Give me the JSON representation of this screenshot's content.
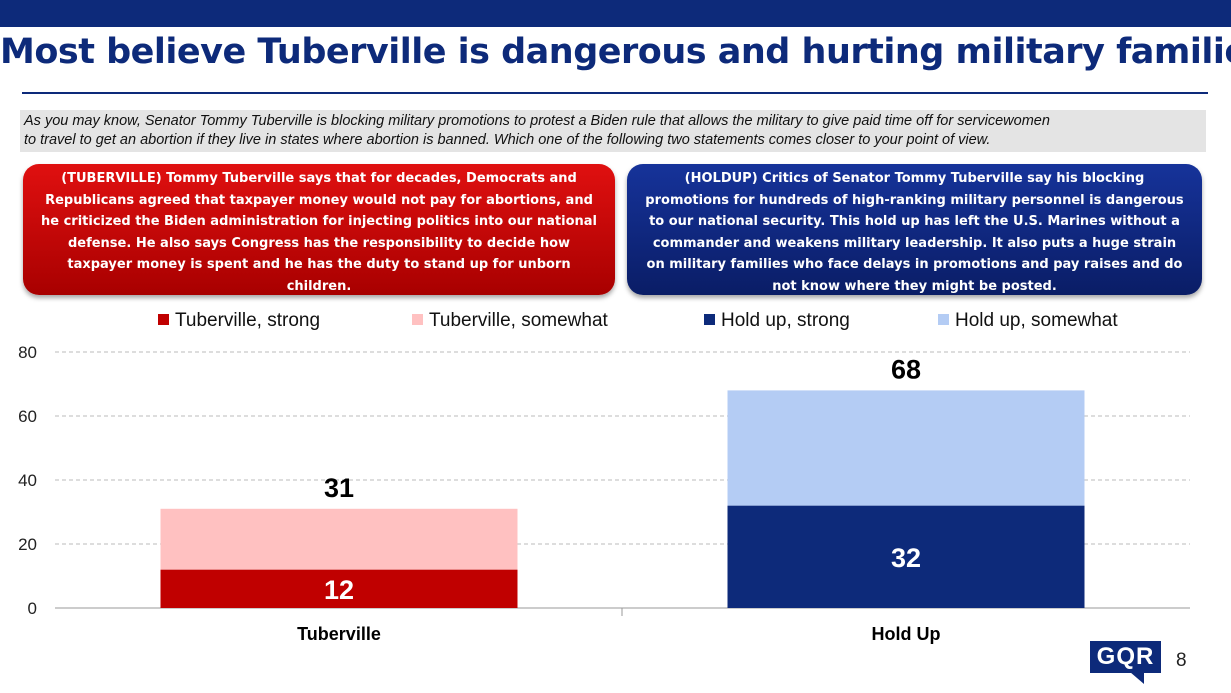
{
  "title": "Most believe Tuberville is dangerous and hurting military families",
  "question_lines": [
    "As you may know, Senator Tommy Tuberville is blocking military promotions to protest a Biden rule that allows the military to give paid time off for servicewomen",
    "to travel to get an abortion if they live in states where abortion is banned. Which one of the following two statements comes closer to your point of view."
  ],
  "statement_tuberville_lines": [
    "(TUBERVILLE) Tommy Tuberville says that for decades, Democrats and",
    "Republicans agreed that taxpayer money would not pay for abortions, and",
    "he criticized the Biden administration for injecting politics into our national",
    "defense. He also says Congress has the responsibility to decide how",
    "taxpayer money is spent and he has the duty to stand up for unborn",
    "children."
  ],
  "statement_holdup_lines": [
    "(HOLDUP) Critics of Senator Tommy Tuberville say his blocking",
    "promotions for hundreds of high-ranking military personnel is dangerous",
    "to our national security. This hold up has left the U.S. Marines without a",
    "commander and weakens military leadership. It also puts a huge strain",
    "on military families who face delays in promotions and pay raises and do",
    "not know where they might be posted."
  ],
  "page_number": "8",
  "logo_text": "GQR",
  "colors": {
    "brand_navy": "#0d2a7a",
    "tuberville_strong": "#c00000",
    "tuberville_somewhat": "#ffc1c1",
    "holdup_strong": "#0d2a7a",
    "holdup_somewhat": "#b4ccf4"
  },
  "chart_data": {
    "type": "bar",
    "stacked": true,
    "categories": [
      "Tuberville",
      "Hold Up"
    ],
    "series": [
      {
        "name": "Tuberville, strong",
        "values": [
          12,
          null
        ],
        "color": "#c00000"
      },
      {
        "name": "Tuberville, somewhat",
        "values": [
          19,
          null
        ],
        "color": "#ffc1c1"
      },
      {
        "name": "Hold up, strong",
        "values": [
          null,
          32
        ],
        "color": "#0d2a7a"
      },
      {
        "name": "Hold up, somewhat",
        "values": [
          null,
          36
        ],
        "color": "#b4ccf4"
      }
    ],
    "strong_labels": [
      "12",
      "32"
    ],
    "total_labels": [
      "31",
      "68"
    ],
    "ylim": [
      0,
      80
    ],
    "yticks": [
      "0",
      "20",
      "40",
      "60",
      "80"
    ],
    "grid": true,
    "legend": "top"
  }
}
